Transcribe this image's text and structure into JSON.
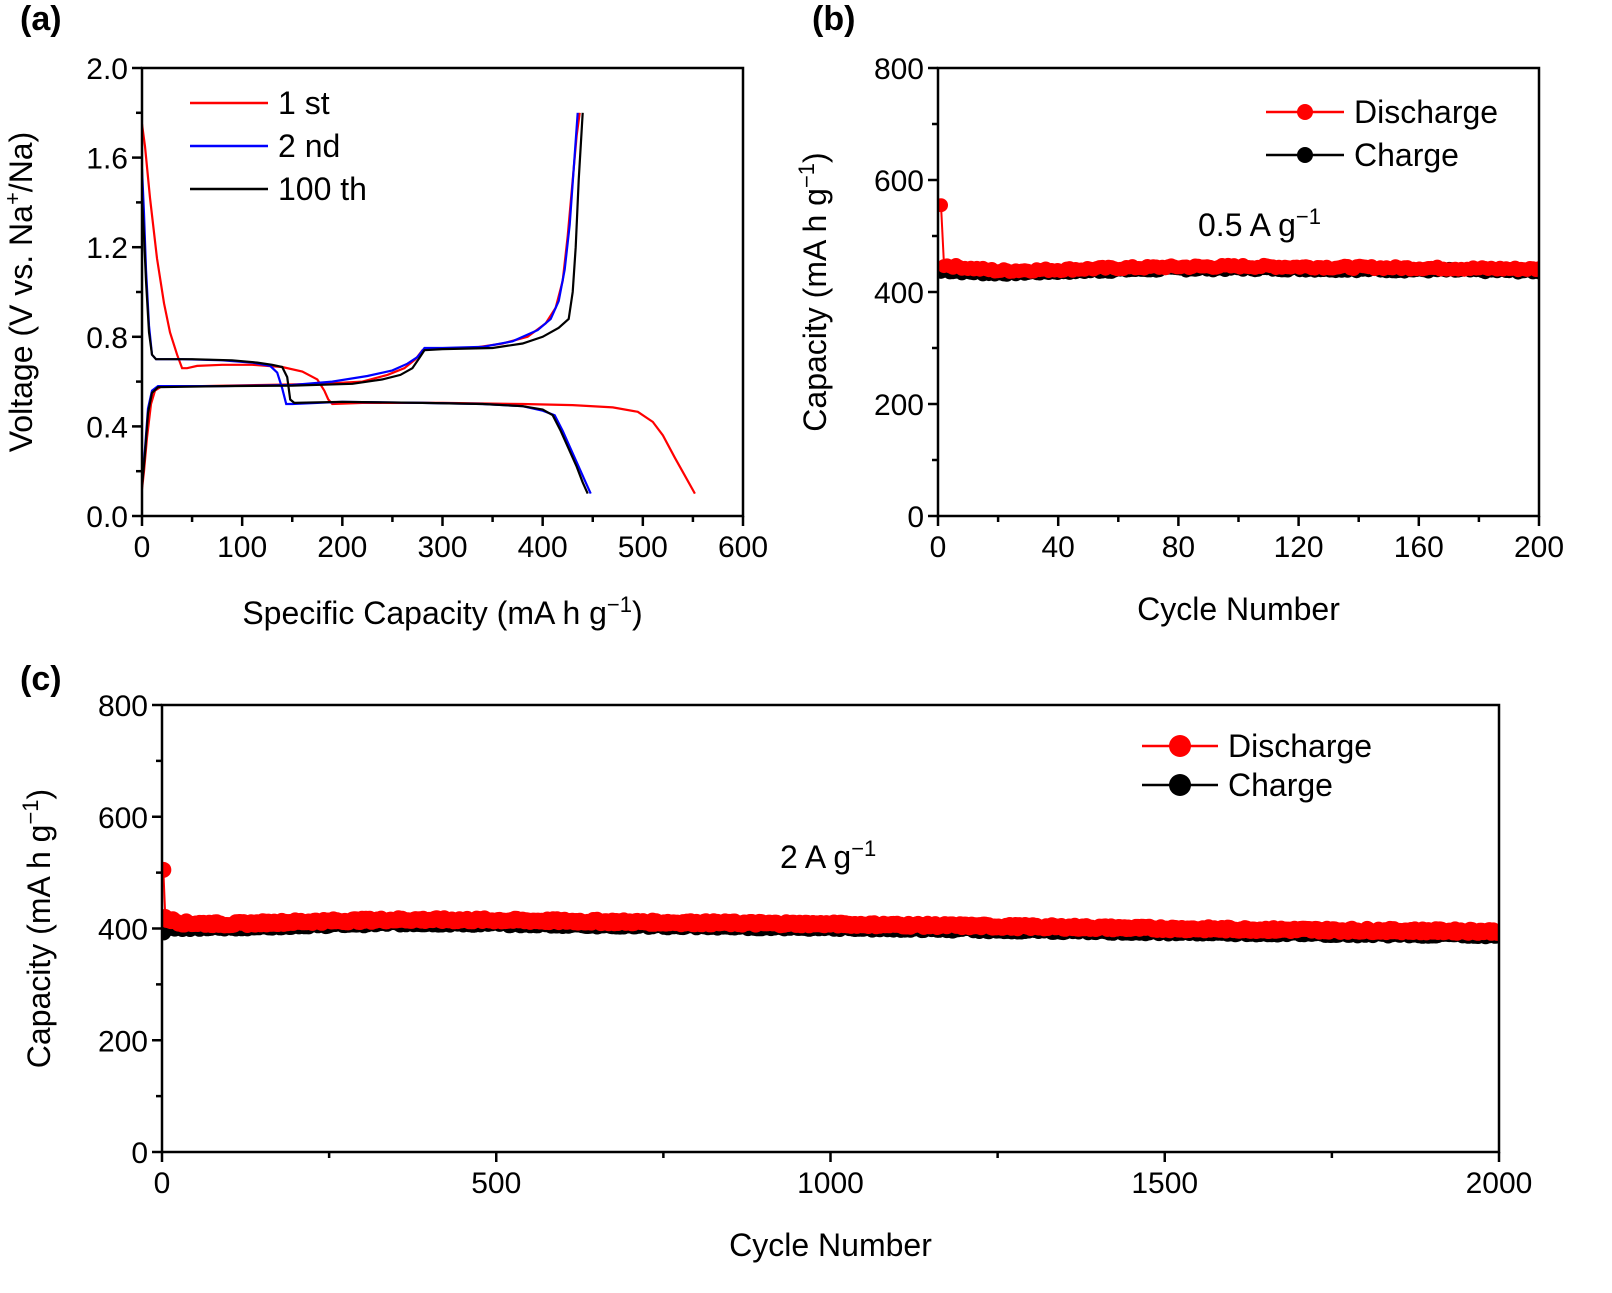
{
  "chart_data": [
    {
      "panel": "(a)",
      "type": "line",
      "xlabel": "Specific Capacity (mA h g",
      "xlabel_sup": "−1",
      "xlabel_end": ")",
      "ylabel": "Voltage (V vs. Na",
      "ylabel_sup": "+",
      "ylabel_end": "/Na)",
      "xlim": [
        0,
        600
      ],
      "ylim": [
        0,
        2.0
      ],
      "xticks": [
        0,
        100,
        200,
        300,
        400,
        500,
        600
      ],
      "xtick_labels": [
        "0",
        "100",
        "200",
        "300",
        "400",
        "500",
        "600"
      ],
      "yticks": [
        0,
        0.4,
        0.8,
        1.2,
        1.6,
        2.0
      ],
      "ytick_labels": [
        "0.0",
        "0.4",
        "0.8",
        "1.2",
        "1.6",
        "2.0"
      ],
      "legend_position": "top-left",
      "series": [
        {
          "name": "1 st",
          "color": "#ff0000",
          "segments": [
            [
              [
                0,
                1.75
              ],
              [
                3,
                1.65
              ],
              [
                8,
                1.42
              ],
              [
                15,
                1.15
              ],
              [
                22,
                0.95
              ],
              [
                28,
                0.82
              ],
              [
                35,
                0.72
              ],
              [
                40,
                0.66
              ],
              [
                45,
                0.66
              ],
              [
                55,
                0.67
              ],
              [
                80,
                0.675
              ],
              [
                110,
                0.675
              ],
              [
                140,
                0.665
              ],
              [
                160,
                0.645
              ],
              [
                175,
                0.61
              ],
              [
                182,
                0.56
              ],
              [
                186,
                0.52
              ],
              [
                190,
                0.5
              ],
              [
                220,
                0.505
              ],
              [
                300,
                0.505
              ],
              [
                380,
                0.5
              ],
              [
                430,
                0.495
              ],
              [
                470,
                0.485
              ],
              [
                495,
                0.465
              ],
              [
                510,
                0.42
              ],
              [
                520,
                0.36
              ],
              [
                532,
                0.26
              ],
              [
                542,
                0.18
              ],
              [
                552,
                0.1
              ]
            ],
            [
              [
                0,
                0.12
              ],
              [
                2,
                0.2
              ],
              [
                5,
                0.35
              ],
              [
                9,
                0.5
              ],
              [
                13,
                0.56
              ],
              [
                20,
                0.58
              ],
              [
                60,
                0.58
              ],
              [
                120,
                0.585
              ],
              [
                180,
                0.59
              ],
              [
                220,
                0.6
              ],
              [
                245,
                0.63
              ],
              [
                262,
                0.66
              ],
              [
                273,
                0.7
              ],
              [
                280,
                0.74
              ],
              [
                290,
                0.745
              ],
              [
                330,
                0.75
              ],
              [
                360,
                0.77
              ],
              [
                385,
                0.8
              ],
              [
                403,
                0.86
              ],
              [
                413,
                0.93
              ],
              [
                420,
                1.05
              ],
              [
                425,
                1.25
              ],
              [
                430,
                1.5
              ],
              [
                434,
                1.7
              ],
              [
                437,
                1.8
              ]
            ]
          ]
        },
        {
          "name": "2 nd",
          "color": "#0000ff",
          "segments": [
            [
              [
                0,
                1.55
              ],
              [
                2,
                1.35
              ],
              [
                4,
                1.1
              ],
              [
                7,
                0.85
              ],
              [
                10,
                0.72
              ],
              [
                14,
                0.7
              ],
              [
                40,
                0.7
              ],
              [
                80,
                0.695
              ],
              [
                110,
                0.685
              ],
              [
                128,
                0.67
              ],
              [
                135,
                0.64
              ],
              [
                140,
                0.57
              ],
              [
                144,
                0.5
              ],
              [
                150,
                0.5
              ],
              [
                200,
                0.51
              ],
              [
                280,
                0.505
              ],
              [
                340,
                0.5
              ],
              [
                380,
                0.49
              ],
              [
                400,
                0.47
              ],
              [
                412,
                0.45
              ],
              [
                420,
                0.38
              ],
              [
                428,
                0.3
              ],
              [
                436,
                0.22
              ],
              [
                443,
                0.15
              ],
              [
                448,
                0.1
              ]
            ],
            [
              [
                0,
                0.15
              ],
              [
                3,
                0.3
              ],
              [
                6,
                0.48
              ],
              [
                10,
                0.56
              ],
              [
                16,
                0.58
              ],
              [
                80,
                0.58
              ],
              [
                150,
                0.585
              ],
              [
                190,
                0.6
              ],
              [
                225,
                0.625
              ],
              [
                250,
                0.65
              ],
              [
                265,
                0.68
              ],
              [
                275,
                0.71
              ],
              [
                282,
                0.75
              ],
              [
                300,
                0.75
              ],
              [
                340,
                0.755
              ],
              [
                370,
                0.78
              ],
              [
                395,
                0.83
              ],
              [
                408,
                0.88
              ],
              [
                416,
                0.96
              ],
              [
                422,
                1.1
              ],
              [
                427,
                1.3
              ],
              [
                431,
                1.55
              ],
              [
                435,
                1.8
              ]
            ]
          ]
        },
        {
          "name": "100 th",
          "color": "#000000",
          "segments": [
            [
              [
                0,
                1.42
              ],
              [
                2,
                1.25
              ],
              [
                4,
                1.05
              ],
              [
                7,
                0.82
              ],
              [
                10,
                0.72
              ],
              [
                14,
                0.7
              ],
              [
                50,
                0.7
              ],
              [
                90,
                0.695
              ],
              [
                115,
                0.685
              ],
              [
                130,
                0.675
              ],
              [
                140,
                0.665
              ],
              [
                145,
                0.62
              ],
              [
                148,
                0.52
              ],
              [
                152,
                0.505
              ],
              [
                200,
                0.51
              ],
              [
                280,
                0.505
              ],
              [
                340,
                0.5
              ],
              [
                380,
                0.49
              ],
              [
                400,
                0.475
              ],
              [
                410,
                0.45
              ],
              [
                418,
                0.38
              ],
              [
                426,
                0.3
              ],
              [
                434,
                0.22
              ],
              [
                440,
                0.15
              ],
              [
                445,
                0.1
              ]
            ],
            [
              [
                0,
                0.13
              ],
              [
                3,
                0.28
              ],
              [
                6,
                0.46
              ],
              [
                10,
                0.55
              ],
              [
                16,
                0.575
              ],
              [
                80,
                0.58
              ],
              [
                150,
                0.582
              ],
              [
                210,
                0.59
              ],
              [
                240,
                0.61
              ],
              [
                258,
                0.63
              ],
              [
                270,
                0.66
              ],
              [
                276,
                0.7
              ],
              [
                282,
                0.74
              ],
              [
                300,
                0.745
              ],
              [
                350,
                0.75
              ],
              [
                380,
                0.77
              ],
              [
                400,
                0.8
              ],
              [
                416,
                0.84
              ],
              [
                426,
                0.88
              ],
              [
                430,
                1.0
              ],
              [
                433,
                1.2
              ],
              [
                436,
                1.5
              ],
              [
                440,
                1.8
              ]
            ]
          ]
        }
      ]
    },
    {
      "panel": "(b)",
      "type": "scatter",
      "xlabel": "Cycle Number",
      "ylabel": "Capacity (mA h g",
      "ylabel_sup": "−1",
      "ylabel_end": ")",
      "xlim": [
        0,
        200
      ],
      "ylim": [
        0,
        800
      ],
      "xticks": [
        0,
        40,
        80,
        120,
        160,
        200
      ],
      "xtick_labels": [
        "0",
        "40",
        "80",
        "120",
        "160",
        "200"
      ],
      "yticks": [
        0,
        200,
        400,
        600,
        800
      ],
      "ytick_labels": [
        "0",
        "200",
        "400",
        "600",
        "800"
      ],
      "annotation": "0.5 A g",
      "annotation_sup": "−1",
      "legend_position": "top-right",
      "series": [
        {
          "name": "Discharge",
          "color": "#ff0000",
          "first_point": [
            1,
            555
          ],
          "profile": [
            [
              2,
              448
            ],
            [
              10,
              443
            ],
            [
              20,
              438
            ],
            [
              40,
              440
            ],
            [
              60,
              443
            ],
            [
              80,
              445
            ],
            [
              100,
              446
            ],
            [
              120,
              445
            ],
            [
              140,
              444
            ],
            [
              160,
              443
            ],
            [
              180,
              442
            ],
            [
              200,
              441
            ]
          ]
        },
        {
          "name": "Charge",
          "color": "#000000",
          "first_point": [
            1,
            436
          ],
          "profile": [
            [
              2,
              438
            ],
            [
              10,
              435
            ],
            [
              20,
              433
            ],
            [
              40,
              436
            ],
            [
              60,
              439
            ],
            [
              80,
              441
            ],
            [
              100,
              442
            ],
            [
              120,
              441
            ],
            [
              140,
              440
            ],
            [
              160,
              439
            ],
            [
              180,
              438
            ],
            [
              200,
              437
            ]
          ]
        }
      ]
    },
    {
      "panel": "(c)",
      "type": "scatter",
      "xlabel": "Cycle Number",
      "ylabel": "Capacity (mA h g",
      "ylabel_sup": "−1",
      "ylabel_end": ")",
      "xlim": [
        0,
        2000
      ],
      "ylim": [
        0,
        800
      ],
      "xticks": [
        0,
        500,
        1000,
        1500,
        2000
      ],
      "xtick_labels": [
        "0",
        "500",
        "1000",
        "1500",
        "2000"
      ],
      "yticks": [
        0,
        200,
        400,
        600,
        800
      ],
      "ytick_labels": [
        "0",
        "200",
        "400",
        "600",
        "800"
      ],
      "annotation": "2 A g",
      "annotation_sup": "−1",
      "legend_position": "top-right",
      "series": [
        {
          "name": "Discharge",
          "color": "#ff0000",
          "first_point": [
            2,
            505
          ],
          "profile": [
            [
              5,
              418
            ],
            [
              30,
              410
            ],
            [
              100,
              408
            ],
            [
              200,
              412
            ],
            [
              350,
              416
            ],
            [
              500,
              415
            ],
            [
              750,
              411
            ],
            [
              1000,
              408
            ],
            [
              1250,
              404
            ],
            [
              1500,
              400
            ],
            [
              1750,
              397
            ],
            [
              2000,
              395
            ]
          ]
        },
        {
          "name": "Charge",
          "color": "#000000",
          "first_point": [
            2,
            393
          ],
          "profile": [
            [
              5,
              404
            ],
            [
              30,
              402
            ],
            [
              100,
              402
            ],
            [
              200,
              406
            ],
            [
              350,
              410
            ],
            [
              500,
              409
            ],
            [
              750,
              405
            ],
            [
              1000,
              402
            ],
            [
              1250,
              398
            ],
            [
              1500,
              394
            ],
            [
              1750,
              391
            ],
            [
              2000,
              389
            ]
          ]
        }
      ]
    }
  ]
}
